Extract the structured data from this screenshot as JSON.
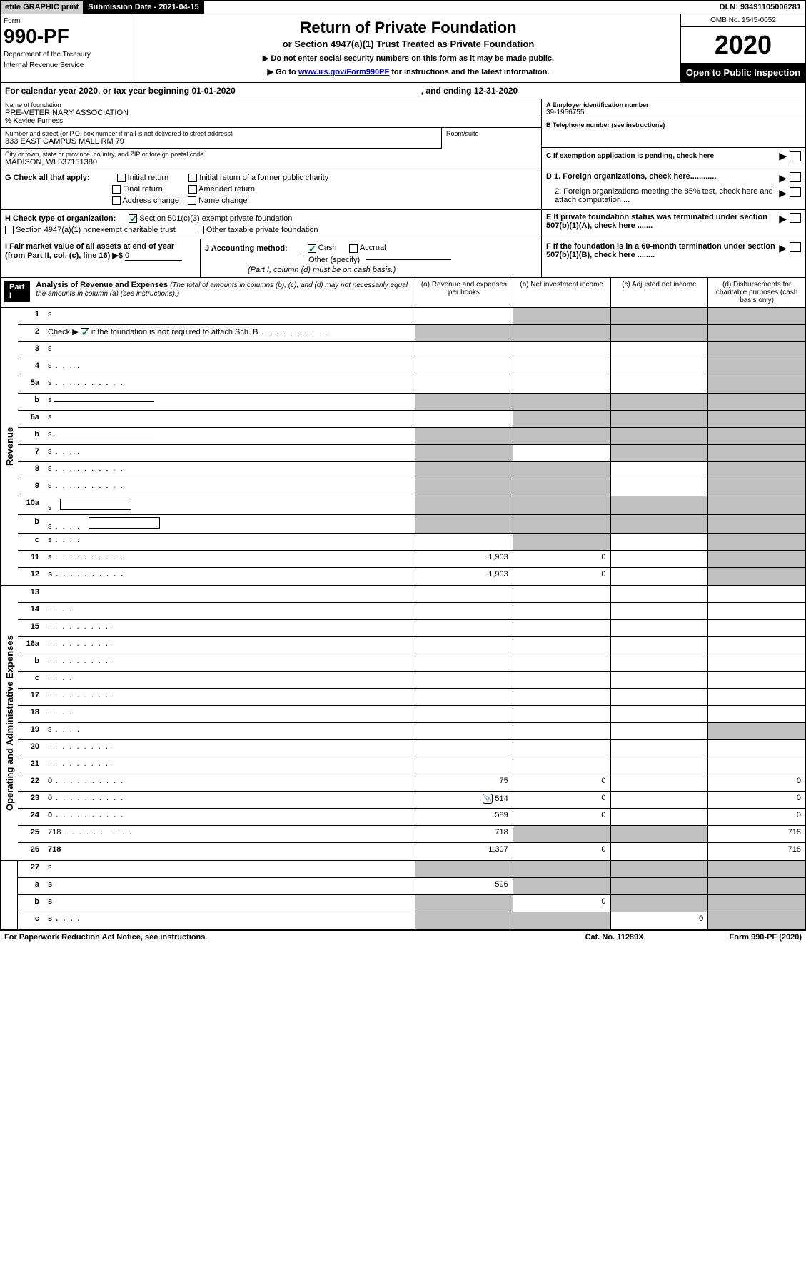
{
  "topbar": {
    "efile": "efile GRAPHIC print",
    "submission": "Submission Date - 2021-04-15",
    "dln": "DLN: 93491105006281"
  },
  "header": {
    "form_label": "Form",
    "form_number": "990-PF",
    "dept1": "Department of the Treasury",
    "dept2": "Internal Revenue Service",
    "title": "Return of Private Foundation",
    "subtitle": "or Section 4947(a)(1) Trust Treated as Private Foundation",
    "instr1": "▶ Do not enter social security numbers on this form as it may be made public.",
    "instr2_pre": "▶ Go to ",
    "instr2_link": "www.irs.gov/Form990PF",
    "instr2_post": " for instructions and the latest information.",
    "omb": "OMB No. 1545-0052",
    "year": "2020",
    "open_public": "Open to Public Inspection"
  },
  "cal_year": {
    "text": "For calendar year 2020, or tax year beginning 01-01-2020",
    "ending": ", and ending 12-31-2020"
  },
  "foundation": {
    "name_label": "Name of foundation",
    "name": "PRE-VETERINARY ASSOCIATION",
    "care_of": "% Kaylee Furness",
    "addr_label": "Number and street (or P.O. box number if mail is not delivered to street address)",
    "addr": "333 EAST CAMPUS MALL RM 79",
    "room_label": "Room/suite",
    "city_label": "City or town, state or province, country, and ZIP or foreign postal code",
    "city": "MADISON, WI  537151380",
    "ein_label": "A Employer identification number",
    "ein": "39-1956755",
    "phone_label": "B Telephone number (see instructions)",
    "c_label": "C If exemption application is pending, check here",
    "d1": "D 1. Foreign organizations, check here............",
    "d2": "2. Foreign organizations meeting the 85% test, check here and attach computation ...",
    "e_label": "E  If private foundation status was terminated under section 507(b)(1)(A), check here .......",
    "f_label": "F  If the foundation is in a 60-month termination under section 507(b)(1)(B), check here ........"
  },
  "checks": {
    "g_label": "G Check all that apply:",
    "initial": "Initial return",
    "initial_former": "Initial return of a former public charity",
    "final": "Final return",
    "amended": "Amended return",
    "address": "Address change",
    "name_change": "Name change",
    "h_label": "H Check type of organization:",
    "h_501c3": "Section 501(c)(3) exempt private foundation",
    "h_4947": "Section 4947(a)(1) nonexempt charitable trust",
    "h_other": "Other taxable private foundation",
    "i_label": "I Fair market value of all assets at end of year (from Part II, col. (c), line 16) ▶$ ",
    "i_value": "0",
    "j_label": "J Accounting method:",
    "j_cash": "Cash",
    "j_accrual": "Accrual",
    "j_other": "Other (specify)",
    "j_note": "(Part I, column (d) must be on cash basis.)"
  },
  "part1": {
    "label": "Part I",
    "title": "Analysis of Revenue and Expenses",
    "desc": "(The total of amounts in columns (b), (c), and (d) may not necessarily equal the amounts in column (a) (see instructions).)",
    "col_a": "(a)   Revenue and expenses per books",
    "col_b": "(b)  Net investment income",
    "col_c": "(c)  Adjusted net income",
    "col_d": "(d)  Disbursements for charitable purposes (cash basis only)"
  },
  "side_labels": {
    "revenue": "Revenue",
    "expenses": "Operating and Administrative Expenses"
  },
  "rows": [
    {
      "n": "1",
      "d": "s",
      "a": "",
      "b": "s",
      "c": "s"
    },
    {
      "n": "2",
      "d": "s",
      "a": "s",
      "b": "s",
      "c": "s",
      "bold_not": true
    },
    {
      "n": "3",
      "d": "s",
      "a": "",
      "b": "",
      "c": ""
    },
    {
      "n": "4",
      "d": "s",
      "a": "",
      "b": "",
      "c": "",
      "dots": "short"
    },
    {
      "n": "5a",
      "d": "s",
      "a": "",
      "b": "",
      "c": "",
      "dots": "long"
    },
    {
      "n": "b",
      "d": "s",
      "a": "s",
      "b": "s",
      "c": "s",
      "inline_line": true
    },
    {
      "n": "6a",
      "d": "s",
      "a": "",
      "b": "s",
      "c": "s"
    },
    {
      "n": "b",
      "d": "s",
      "a": "s",
      "b": "s",
      "c": "s",
      "inline_line": true
    },
    {
      "n": "7",
      "d": "s",
      "a": "s",
      "b": "",
      "c": "s",
      "dots": "short"
    },
    {
      "n": "8",
      "d": "s",
      "a": "s",
      "b": "s",
      "c": "",
      "dots": "long"
    },
    {
      "n": "9",
      "d": "s",
      "a": "s",
      "b": "s",
      "c": "",
      "dots": "long"
    },
    {
      "n": "10a",
      "d": "s",
      "a": "s",
      "b": "s",
      "c": "s",
      "inline_box": true
    },
    {
      "n": "b",
      "d": "s",
      "a": "s",
      "b": "s",
      "c": "s",
      "dots": "short",
      "inline_box": true
    },
    {
      "n": "c",
      "d": "s",
      "a": "",
      "b": "s",
      "c": "",
      "dots": "short"
    },
    {
      "n": "11",
      "d": "s",
      "a": "1,903",
      "b": "0",
      "c": "",
      "dots": "long"
    },
    {
      "n": "12",
      "d": "s",
      "a": "1,903",
      "b": "0",
      "c": "",
      "bold": true,
      "dots": "long"
    }
  ],
  "exp_rows": [
    {
      "n": "13",
      "d": "",
      "a": "",
      "b": "",
      "c": ""
    },
    {
      "n": "14",
      "d": "",
      "a": "",
      "b": "",
      "c": "",
      "dots": "short"
    },
    {
      "n": "15",
      "d": "",
      "a": "",
      "b": "",
      "c": "",
      "dots": "long"
    },
    {
      "n": "16a",
      "d": "",
      "a": "",
      "b": "",
      "c": "",
      "dots": "long"
    },
    {
      "n": "b",
      "d": "",
      "a": "",
      "b": "",
      "c": "",
      "dots": "long"
    },
    {
      "n": "c",
      "d": "",
      "a": "",
      "b": "",
      "c": "",
      "dots": "short"
    },
    {
      "n": "17",
      "d": "",
      "a": "",
      "b": "",
      "c": "",
      "dots": "long"
    },
    {
      "n": "18",
      "d": "",
      "a": "",
      "b": "",
      "c": "",
      "dots": "short"
    },
    {
      "n": "19",
      "d": "s",
      "a": "",
      "b": "",
      "c": "",
      "dots": "short"
    },
    {
      "n": "20",
      "d": "",
      "a": "",
      "b": "",
      "c": "",
      "dots": "long"
    },
    {
      "n": "21",
      "d": "",
      "a": "",
      "b": "",
      "c": "",
      "dots": "long"
    },
    {
      "n": "22",
      "d": "0",
      "a": "75",
      "b": "0",
      "c": "",
      "dots": "long"
    },
    {
      "n": "23",
      "d": "0",
      "a": "514",
      "b": "0",
      "c": "",
      "dots": "long",
      "attach_icon": true
    },
    {
      "n": "24",
      "d": "0",
      "a": "589",
      "b": "0",
      "c": "",
      "bold": true,
      "dots": "long",
      "twoline": true
    },
    {
      "n": "25",
      "d": "718",
      "a": "718",
      "b": "s",
      "c": "s",
      "dots": "long"
    },
    {
      "n": "26",
      "d": "718",
      "a": "1,307",
      "b": "0",
      "c": "",
      "bold": true,
      "twoline": true
    }
  ],
  "final_rows": [
    {
      "n": "27",
      "d": "s",
      "a": "s",
      "b": "s",
      "c": "s"
    },
    {
      "n": "a",
      "d": "s",
      "a": "596",
      "b": "s",
      "c": "s",
      "bold": true
    },
    {
      "n": "b",
      "d": "s",
      "a": "s",
      "b": "0",
      "c": "s",
      "bold": true
    },
    {
      "n": "c",
      "d": "s",
      "a": "s",
      "b": "s",
      "c": "0",
      "bold": true,
      "dots": "short"
    }
  ],
  "footer": {
    "left": "For Paperwork Reduction Act Notice, see instructions.",
    "center": "Cat. No. 11289X",
    "right": "Form 990-PF (2020)"
  },
  "colors": {
    "shaded": "#c0c0c0",
    "black": "#000000",
    "check_green": "#0a7a3a",
    "link": "#0000cc"
  }
}
